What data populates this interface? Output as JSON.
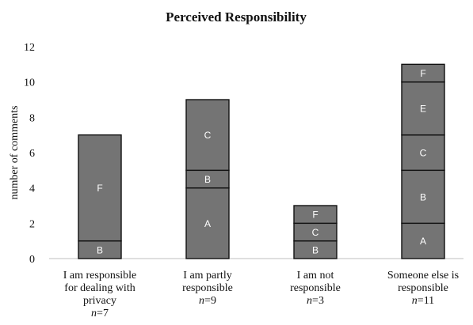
{
  "chart_data": {
    "type": "bar",
    "stacked": true,
    "title": "Perceived Responsibility",
    "ylabel": "number of comments",
    "xlabel": "",
    "ylim": [
      0,
      12
    ],
    "yticks": [
      0,
      2,
      4,
      6,
      8,
      10,
      12
    ],
    "grid": false,
    "bar_color": "#747474",
    "categories": [
      {
        "label_lines": [
          "I am responsible",
          "for dealing with",
          "privacy"
        ],
        "n_prefix": "n",
        "n_value": "=7",
        "segments": [
          {
            "label": "B",
            "value": 1
          },
          {
            "label": "F",
            "value": 6
          }
        ]
      },
      {
        "label_lines": [
          "I am partly",
          "responsible"
        ],
        "n_prefix": "n",
        "n_value": "=9",
        "segments": [
          {
            "label": "A",
            "value": 4
          },
          {
            "label": "B",
            "value": 1
          },
          {
            "label": "C",
            "value": 4
          }
        ]
      },
      {
        "label_lines": [
          "I am not",
          "responsible"
        ],
        "n_prefix": "n",
        "n_value": "=3",
        "segments": [
          {
            "label": "B",
            "value": 1
          },
          {
            "label": "C",
            "value": 1
          },
          {
            "label": "F",
            "value": 1
          }
        ]
      },
      {
        "label_lines": [
          "Someone else is",
          "responsible"
        ],
        "n_prefix": "n",
        "n_value": "=11",
        "segments": [
          {
            "label": "A",
            "value": 2
          },
          {
            "label": "B",
            "value": 3
          },
          {
            "label": "C",
            "value": 2
          },
          {
            "label": "E",
            "value": 3
          },
          {
            "label": "F",
            "value": 1
          }
        ]
      }
    ]
  }
}
